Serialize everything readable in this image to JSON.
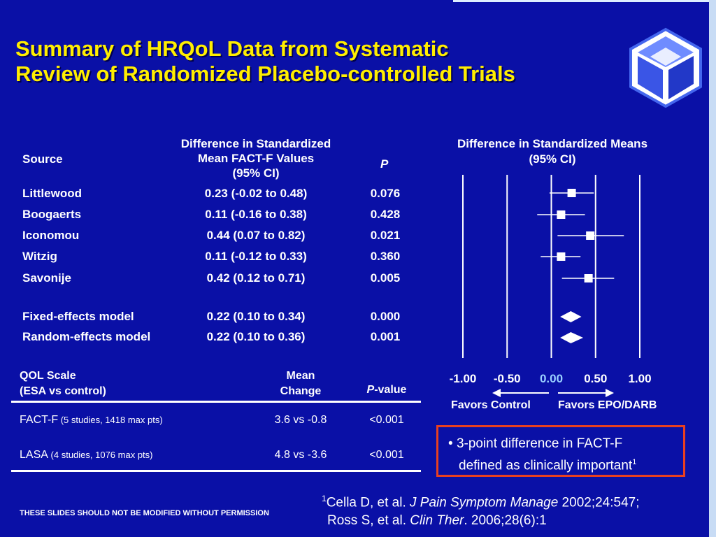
{
  "title": [
    "Summary of HRQoL Data from Systematic",
    "Review of Randomized Placebo-controlled Trials"
  ],
  "table": {
    "headers": {
      "source": "Source",
      "difference": [
        "Difference in Standardized",
        "Mean FACT-F Values",
        "(95% CI)"
      ],
      "p": "P"
    },
    "rows": [
      {
        "source": "Littlewood",
        "ci": "0.23 (-0.02 to 0.48)",
        "p": "0.076"
      },
      {
        "source": "Boogaerts",
        "ci": "0.11 (-0.16 to 0.38)",
        "p": "0.428"
      },
      {
        "source": "Iconomou",
        "ci": "0.44 (0.07 to 0.82)",
        "p": "0.021"
      },
      {
        "source": "Witzig",
        "ci": "0.11 (-0.12 to 0.33)",
        "p": "0.360"
      },
      {
        "source": "Savonije",
        "ci": "0.42 (0.12 to 0.71)",
        "p": "0.005"
      },
      {
        "source": "Fixed-effects model",
        "ci": "0.22 (0.10 to 0.34)",
        "p": "0.000"
      },
      {
        "source": "Random-effects model",
        "ci": "0.22 (0.10 to 0.36)",
        "p": "0.001"
      }
    ]
  },
  "qol_table": {
    "headers": {
      "scale": [
        "QOL Scale",
        "(ESA vs control)"
      ],
      "mean": [
        "Mean",
        "Change"
      ],
      "p_italic": "P",
      "p_rest": "-value"
    },
    "rows": [
      {
        "scale": "FACT-F",
        "detail": " (5 studies, 1418 max pts)",
        "change": "3.6 vs -0.8",
        "p": "<0.001"
      },
      {
        "scale": "LASA",
        "detail": " (4 studies, 1076 max pts)",
        "change": "4.8 vs -3.6",
        "p": "<0.001"
      }
    ]
  },
  "chart_data": {
    "type": "forest",
    "title": [
      "Difference in Standardized Means",
      "(95% CI)"
    ],
    "xlim": [
      -1.0,
      1.0
    ],
    "ticks": [
      {
        "value": -1.0,
        "label": "-1.00"
      },
      {
        "value": -0.5,
        "label": "-0.50"
      },
      {
        "value": 0.0,
        "label": "0.00"
      },
      {
        "value": 0.5,
        "label": "0.50"
      },
      {
        "value": 1.0,
        "label": "1.00"
      }
    ],
    "studies": [
      {
        "name": "Littlewood",
        "est": 0.23,
        "lo": -0.02,
        "hi": 0.48
      },
      {
        "name": "Boogaerts",
        "est": 0.11,
        "lo": -0.16,
        "hi": 0.38
      },
      {
        "name": "Iconomou",
        "est": 0.44,
        "lo": 0.07,
        "hi": 0.82
      },
      {
        "name": "Witzig",
        "est": 0.11,
        "lo": -0.12,
        "hi": 0.33
      },
      {
        "name": "Savonije",
        "est": 0.42,
        "lo": 0.12,
        "hi": 0.71
      }
    ],
    "pooled": [
      {
        "name": "Fixed-effects model",
        "est": 0.22,
        "lo": 0.1,
        "hi": 0.34
      },
      {
        "name": "Random-effects model",
        "est": 0.22,
        "lo": 0.1,
        "hi": 0.36
      }
    ],
    "favors_left": "Favors Control",
    "favors_right": "Favors EPO/DARB",
    "zero_color": "#9ad0ff"
  },
  "callout": {
    "text": "3-point difference in FACT-F",
    "text2": "defined as clinically important",
    "sup": "1"
  },
  "permission": "THESE SLIDES SHOULD NOT BE MODIFIED WITHOUT PERMISSION",
  "references": {
    "ref1": {
      "sup": "1",
      "authors": "Cella D, et al. ",
      "journal": "J Pain Symptom Manage",
      "rest": " 2002;24:547;"
    },
    "ref2": {
      "authors": "Ross S, et al. ",
      "journal": "Clin Ther",
      "rest": ". 2006;28(6):1"
    }
  },
  "colors": {
    "background": "#0a10a6",
    "title": "#ffee00",
    "callout_border": "#e84020"
  }
}
